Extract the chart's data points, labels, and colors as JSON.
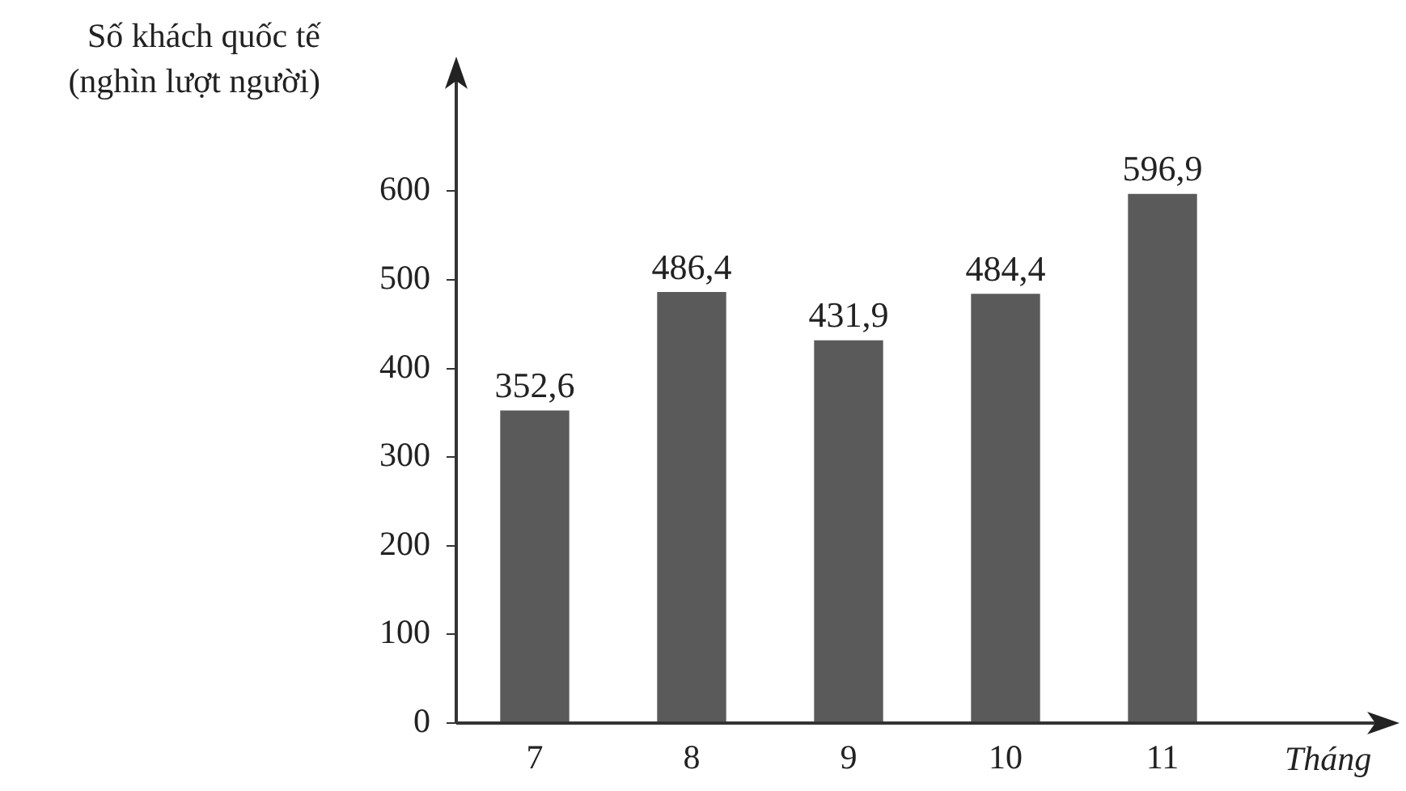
{
  "chart_data": {
    "type": "bar",
    "xlabel": "Tháng",
    "ylabel": "Số khách quốc tế (nghìn lượt người)",
    "categories": [
      "7",
      "8",
      "9",
      "10",
      "11"
    ],
    "values": [
      352.6,
      486.4,
      431.9,
      484.4,
      596.9
    ],
    "color": "#5a5a5a",
    "value_labels": [
      "352,6",
      "486,4",
      "431,9",
      "484,4",
      "596,9"
    ],
    "ylim": [
      0,
      730
    ],
    "yticks": [
      0,
      100,
      200,
      300,
      400,
      500,
      600
    ],
    "grid": false,
    "legend": false
  }
}
